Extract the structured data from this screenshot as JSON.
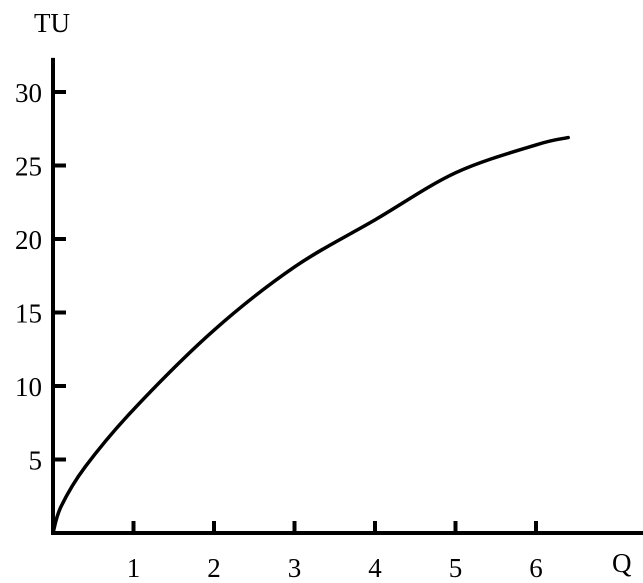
{
  "chart_data": {
    "type": "line",
    "title": "",
    "xlabel": "Q",
    "ylabel": "TU",
    "xlim": [
      0,
      7.2
    ],
    "ylim": [
      0,
      33
    ],
    "x_ticks": [
      "1",
      "2",
      "3",
      "4",
      "5",
      "6"
    ],
    "x_tick_values": [
      1,
      2,
      3,
      4,
      5,
      6
    ],
    "y_ticks": [
      "5",
      "10",
      "15",
      "20",
      "25",
      "30"
    ],
    "y_tick_values": [
      5,
      10,
      15,
      20,
      25,
      30
    ],
    "grid": false,
    "series": [
      {
        "x": [
          0,
          0.1,
          0.4,
          1,
          2,
          3,
          4,
          5,
          6,
          6.4
        ],
        "y": [
          0,
          1.8,
          4.5,
          8.4,
          13.8,
          18.1,
          21.3,
          24.5,
          26.4,
          26.9
        ],
        "color": "#000000"
      }
    ]
  }
}
